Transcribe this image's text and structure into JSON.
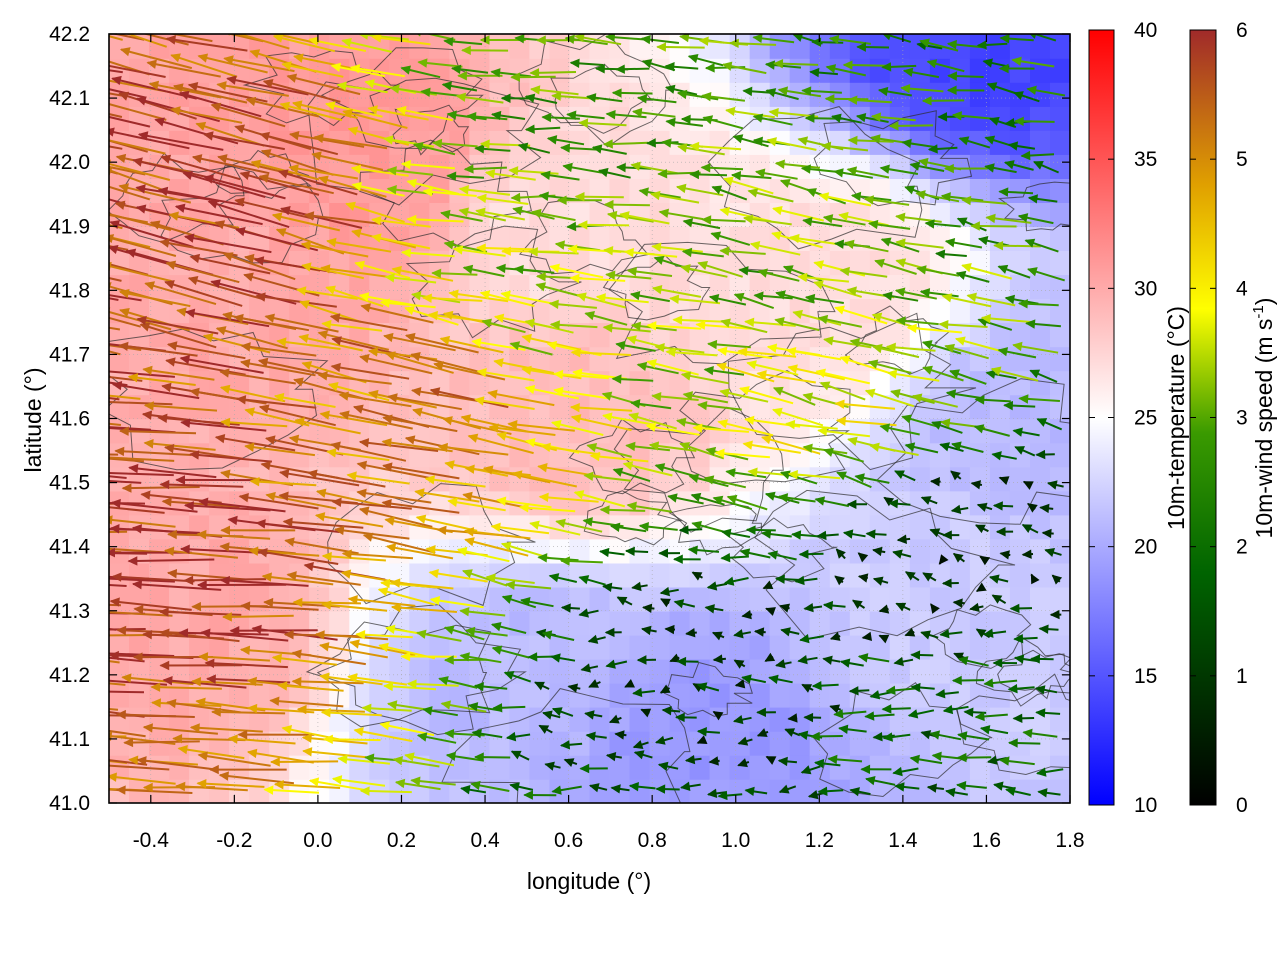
{
  "chart_data": {
    "type": "vector-field",
    "xlabel": "longitude (°)",
    "ylabel": "latitude (°)",
    "xlim": [
      -0.5,
      1.8
    ],
    "ylim": [
      41.0,
      42.2
    ],
    "xticks": [
      -0.4,
      -0.2,
      0.0,
      0.2,
      0.4,
      0.6,
      0.8,
      1.0,
      1.2,
      1.4,
      1.6,
      1.8
    ],
    "yticks": [
      41.0,
      41.1,
      41.2,
      41.3,
      41.4,
      41.5,
      41.6,
      41.7,
      41.8,
      41.9,
      42.0,
      42.1,
      42.2
    ],
    "xtick_labels": [
      "-0.4",
      "-0.2",
      "0.0",
      "0.2",
      "0.4",
      "0.6",
      "0.8",
      "1.0",
      "1.2",
      "1.4",
      "1.6",
      "1.8"
    ],
    "ytick_labels": [
      "41.0",
      "41.1",
      "41.2",
      "41.3",
      "41.4",
      "41.5",
      "41.6",
      "41.7",
      "41.8",
      "41.9",
      "42.0",
      "42.1",
      "42.2"
    ],
    "grid": true,
    "colorbars": [
      {
        "label": "10m-temperature (°C)",
        "range": [
          10,
          40
        ],
        "ticks": [
          10,
          15,
          20,
          25,
          30,
          35,
          40
        ],
        "tick_labels": [
          "10",
          "15",
          "20",
          "25",
          "30",
          "35",
          "40"
        ],
        "colors": [
          "#0000ff",
          "#ffffff",
          "#ff0000"
        ]
      },
      {
        "label_main": "10m-wind speed (m s",
        "label_sup": "-1",
        "label_end": ")",
        "range": [
          0,
          6
        ],
        "ticks": [
          0,
          1,
          2,
          3,
          4,
          5,
          6
        ],
        "tick_labels": [
          "0",
          "1",
          "2",
          "3",
          "4",
          "5",
          "6"
        ],
        "colors": [
          "#000000",
          "#006400",
          "#228b00",
          "#ffff00",
          "#e0a000",
          "#c06020",
          "#a02a2a"
        ]
      }
    ],
    "temperature_field": {
      "description_units": "°C",
      "regions": [
        {
          "lon": -0.35,
          "lat": 41.3,
          "value": 30
        },
        {
          "lon": -0.2,
          "lat": 41.8,
          "value": 30
        },
        {
          "lon": 0.1,
          "lat": 42.0,
          "value": 31
        },
        {
          "lon": 0.6,
          "lat": 41.6,
          "value": 29
        },
        {
          "lon": 0.6,
          "lat": 41.9,
          "value": 27
        },
        {
          "lon": 1.2,
          "lat": 41.8,
          "value": 27
        },
        {
          "lon": 0.9,
          "lat": 41.1,
          "value": 19
        },
        {
          "lon": 1.5,
          "lat": 41.3,
          "value": 22
        },
        {
          "lon": 1.7,
          "lat": 41.6,
          "value": 21
        },
        {
          "lon": 1.6,
          "lat": 42.2,
          "value": 14
        },
        {
          "lon": 0.5,
          "lat": 41.2,
          "value": 21
        }
      ]
    },
    "wind_field": {
      "units": "m s-1",
      "regions": [
        {
          "lon": -0.3,
          "lat": 41.4,
          "u": -5.8,
          "v": 0.3
        },
        {
          "lon": -0.2,
          "lat": 41.9,
          "u": -5.5,
          "v": 1.4
        },
        {
          "lon": 0.3,
          "lat": 41.6,
          "u": -5.0,
          "v": 1.0
        },
        {
          "lon": 0.6,
          "lat": 41.8,
          "u": -3.5,
          "v": 0.5
        },
        {
          "lon": 0.7,
          "lat": 42.0,
          "u": -2.8,
          "v": 0.2
        },
        {
          "lon": 1.2,
          "lat": 41.9,
          "u": -3.0,
          "v": 0.6
        },
        {
          "lon": 1.3,
          "lat": 41.6,
          "u": -3.6,
          "v": 0.8
        },
        {
          "lon": 1.0,
          "lat": 41.2,
          "u": -1.0,
          "v": 0.0
        },
        {
          "lon": 1.5,
          "lat": 41.1,
          "u": -1.8,
          "v": 0.0
        },
        {
          "lon": 1.5,
          "lat": 41.4,
          "u": -0.6,
          "v": 0.2
        },
        {
          "lon": 1.6,
          "lat": 42.1,
          "u": -2.4,
          "v": 0.3
        }
      ]
    }
  }
}
